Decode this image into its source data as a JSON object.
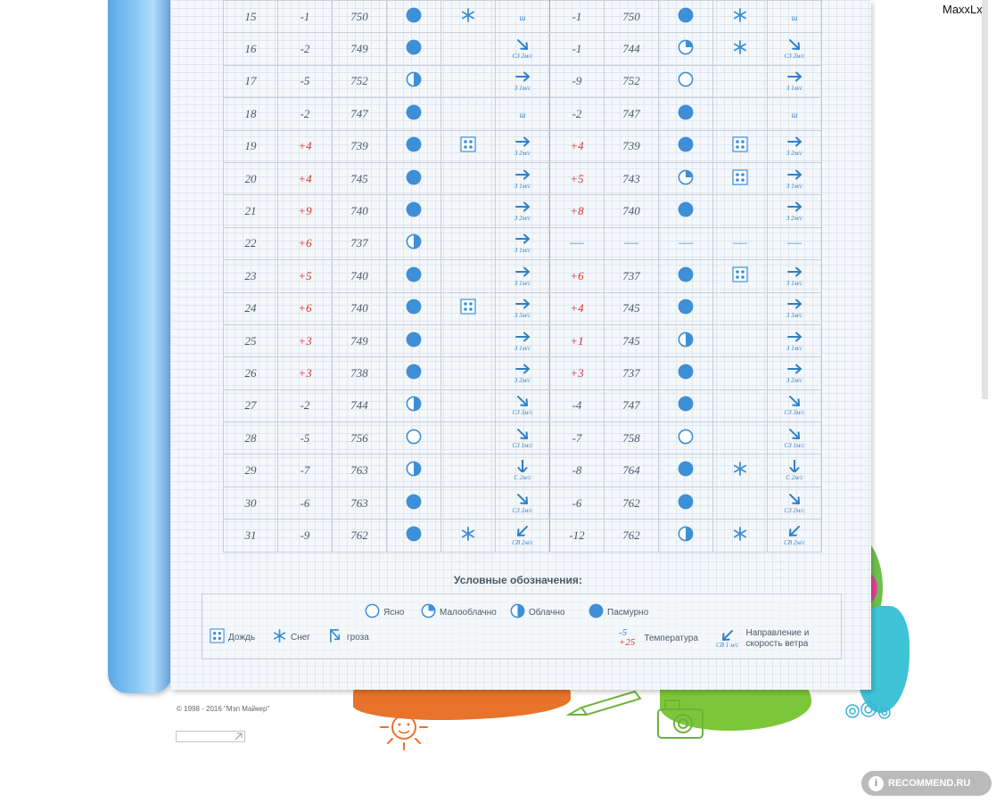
{
  "username": "MaxxLxx",
  "table": {
    "rows": [
      {
        "day": "15",
        "t1": "-1",
        "p1": "750",
        "c1": "overcast",
        "pr1": "snow",
        "w1": {
          "dir": "none",
          "label": "ш"
        },
        "t2": "-1",
        "p2": "750",
        "c2": "overcast",
        "pr2": "snow",
        "w2": {
          "dir": "none",
          "label": "ш"
        }
      },
      {
        "day": "16",
        "t1": "-2",
        "p1": "749",
        "c1": "overcast",
        "pr1": "",
        "w1": {
          "dir": "se",
          "label": "СЗ 2м/с"
        },
        "t2": "-1",
        "p2": "744",
        "c2": "partly",
        "pr2": "snow",
        "w2": {
          "dir": "se",
          "label": "СЗ 2м/с"
        }
      },
      {
        "day": "17",
        "t1": "-5",
        "p1": "752",
        "c1": "cloudy",
        "pr1": "",
        "w1": {
          "dir": "e",
          "label": "З 1м/с"
        },
        "t2": "-9",
        "p2": "752",
        "c2": "clear",
        "pr2": "",
        "w2": {
          "dir": "e",
          "label": "З 1м/с"
        }
      },
      {
        "day": "18",
        "t1": "-2",
        "p1": "747",
        "c1": "overcast",
        "pr1": "",
        "w1": {
          "dir": "none",
          "label": "ш"
        },
        "t2": "-2",
        "p2": "747",
        "c2": "overcast",
        "pr2": "",
        "w2": {
          "dir": "none",
          "label": "ш"
        }
      },
      {
        "day": "19",
        "t1": "+4",
        "p1": "739",
        "c1": "overcast",
        "pr1": "rain",
        "w1": {
          "dir": "e",
          "label": "З 2м/с"
        },
        "t2": "+4",
        "p2": "739",
        "c2": "overcast",
        "pr2": "rain",
        "w2": {
          "dir": "e",
          "label": "З 2м/с"
        }
      },
      {
        "day": "20",
        "t1": "+4",
        "p1": "745",
        "c1": "overcast",
        "pr1": "",
        "w1": {
          "dir": "e",
          "label": "З 1м/с"
        },
        "t2": "+5",
        "p2": "743",
        "c2": "partly",
        "pr2": "rain",
        "w2": {
          "dir": "e",
          "label": "З 1м/с"
        }
      },
      {
        "day": "21",
        "t1": "+9",
        "p1": "740",
        "c1": "overcast",
        "pr1": "",
        "w1": {
          "dir": "e",
          "label": "З 2м/с"
        },
        "t2": "+8",
        "p2": "740",
        "c2": "overcast",
        "pr2": "",
        "w2": {
          "dir": "e",
          "label": "З 2м/с"
        }
      },
      {
        "day": "22",
        "t1": "+6",
        "p1": "737",
        "c1": "cloudy",
        "pr1": "",
        "w1": {
          "dir": "e",
          "label": "З 1м/с"
        },
        "t2": "—",
        "p2": "—",
        "c2": "nodata",
        "pr2": "nodata",
        "w2": {
          "dir": "nodata",
          "label": "—"
        }
      },
      {
        "day": "23",
        "t1": "+5",
        "p1": "740",
        "c1": "overcast",
        "pr1": "",
        "w1": {
          "dir": "e",
          "label": "З 1м/с"
        },
        "t2": "+6",
        "p2": "737",
        "c2": "overcast",
        "pr2": "rain",
        "w2": {
          "dir": "e",
          "label": "З 1м/с"
        }
      },
      {
        "day": "24",
        "t1": "+6",
        "p1": "740",
        "c1": "overcast",
        "pr1": "rain",
        "w1": {
          "dir": "e",
          "label": "З 3м/с"
        },
        "t2": "+4",
        "p2": "745",
        "c2": "overcast",
        "pr2": "",
        "w2": {
          "dir": "e",
          "label": "З 3м/с"
        }
      },
      {
        "day": "25",
        "t1": "+3",
        "p1": "749",
        "c1": "overcast",
        "pr1": "",
        "w1": {
          "dir": "e",
          "label": "З 1м/с"
        },
        "t2": "+1",
        "p2": "745",
        "c2": "cloudy",
        "pr2": "",
        "w2": {
          "dir": "e",
          "label": "З 1м/с"
        }
      },
      {
        "day": "26",
        "t1": "+3",
        "p1": "738",
        "c1": "overcast",
        "pr1": "",
        "w1": {
          "dir": "e",
          "label": "З 2м/с"
        },
        "t2": "+3",
        "p2": "737",
        "c2": "overcast",
        "pr2": "",
        "w2": {
          "dir": "e",
          "label": "З 2м/с"
        }
      },
      {
        "day": "27",
        "t1": "-2",
        "p1": "744",
        "c1": "cloudy",
        "pr1": "",
        "w1": {
          "dir": "se",
          "label": "СЗ 3м/с"
        },
        "t2": "-4",
        "p2": "747",
        "c2": "overcast",
        "pr2": "",
        "w2": {
          "dir": "se",
          "label": "СЗ 3м/с"
        }
      },
      {
        "day": "28",
        "t1": "-5",
        "p1": "756",
        "c1": "clear",
        "pr1": "",
        "w1": {
          "dir": "se",
          "label": "СЗ 1м/с"
        },
        "t2": "-7",
        "p2": "758",
        "c2": "clear",
        "pr2": "",
        "w2": {
          "dir": "se",
          "label": "СЗ 1м/с"
        }
      },
      {
        "day": "29",
        "t1": "-7",
        "p1": "763",
        "c1": "cloudy",
        "pr1": "",
        "w1": {
          "dir": "s",
          "label": "С 2м/с"
        },
        "t2": "-8",
        "p2": "764",
        "c2": "overcast",
        "pr2": "snow",
        "w2": {
          "dir": "s",
          "label": "С 2м/с"
        }
      },
      {
        "day": "30",
        "t1": "-6",
        "p1": "763",
        "c1": "overcast",
        "pr1": "",
        "w1": {
          "dir": "se",
          "label": "СЗ 2м/с"
        },
        "t2": "-6",
        "p2": "762",
        "c2": "overcast",
        "pr2": "",
        "w2": {
          "dir": "se",
          "label": "СЗ 2м/с"
        }
      },
      {
        "day": "31",
        "t1": "-9",
        "p1": "762",
        "c1": "overcast",
        "pr1": "snow",
        "w1": {
          "dir": "sw",
          "label": "СВ 2м/с"
        },
        "t2": "-12",
        "p2": "762",
        "c2": "cloudy",
        "pr2": "snow",
        "w2": {
          "dir": "sw",
          "label": "СВ 2м/с"
        }
      }
    ]
  },
  "legend": {
    "title": "Условные обозначения:",
    "clear": "Ясно",
    "partly": "Малооблачно",
    "cloudy": "Облачно",
    "overcast": "Пасмурно",
    "rain": "Дождь",
    "snow": "Снег",
    "storm": "гроза",
    "temp_neg": "-5",
    "temp_pos": "+25",
    "temp_label": "Температура",
    "wind_sample": "СВ 1 м/с",
    "wind_label_1": "Направление и",
    "wind_label_2": "скорость ветра"
  },
  "footer": {
    "copyright": "© 1998 - 2016 \"Мэп Майкер\""
  },
  "watermark": "RECOMMEND.RU",
  "colors": {
    "accent_blue": "#3d8fd6",
    "temp_red": "#d9302c",
    "text": "#4a5a6a"
  }
}
